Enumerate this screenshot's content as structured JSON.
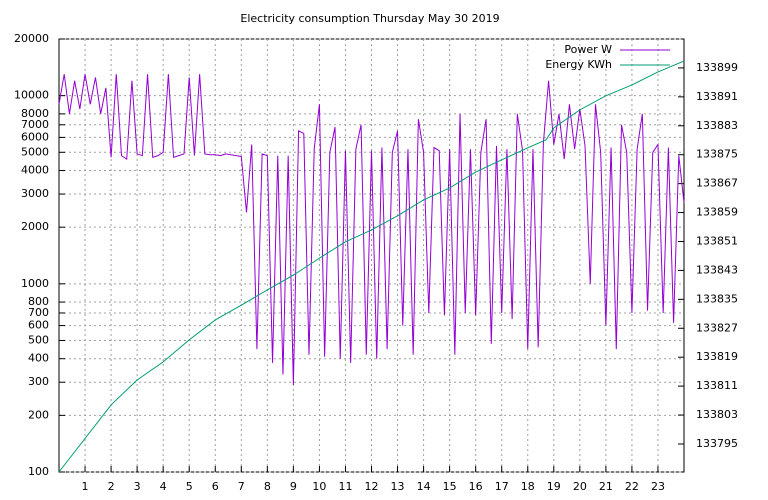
{
  "chart_data": {
    "type": "line",
    "title": "Electricity consumption Thursday May 30 2019",
    "xlim": [
      0,
      24
    ],
    "xticks": [
      1,
      2,
      3,
      4,
      5,
      6,
      7,
      8,
      9,
      10,
      11,
      12,
      13,
      14,
      15,
      16,
      17,
      18,
      19,
      20,
      21,
      22,
      23
    ],
    "ylim": [
      100,
      20000
    ],
    "ylog": true,
    "yticks": [
      100,
      200,
      300,
      400,
      500,
      600,
      700,
      800,
      1000,
      2000,
      3000,
      4000,
      5000,
      6000,
      7000,
      8000,
      10000,
      20000
    ],
    "y2lim": [
      133787.25,
      133907.0
    ],
    "y2ticks": [
      133795,
      133803,
      133811,
      133819,
      133827,
      133835,
      133843,
      133851,
      133859,
      133867,
      133875,
      133883,
      133891,
      133899
    ],
    "grid": true,
    "legend": "top-right",
    "series": [
      {
        "name": "Power W",
        "color": "#9400d3",
        "x": [
          0,
          0.2,
          0.4,
          0.6,
          0.8,
          1,
          1.2,
          1.4,
          1.6,
          1.8,
          2,
          2.2,
          2.4,
          2.6,
          2.8,
          3,
          3.2,
          3.4,
          3.6,
          3.8,
          4,
          4.2,
          4.4,
          4.6,
          4.8,
          5,
          5.2,
          5.4,
          5.6,
          5.8,
          6,
          6.2,
          6.4,
          6.6,
          6.8,
          7,
          7.2,
          7.4,
          7.6,
          7.8,
          8,
          8.2,
          8.4,
          8.6,
          8.8,
          9,
          9.2,
          9.4,
          9.6,
          9.8,
          10,
          10.2,
          10.4,
          10.6,
          10.8,
          11,
          11.2,
          11.4,
          11.6,
          11.8,
          12,
          12.2,
          12.4,
          12.6,
          12.8,
          13,
          13.2,
          13.4,
          13.6,
          13.8,
          14,
          14.2,
          14.4,
          14.6,
          14.8,
          15,
          15.2,
          15.4,
          15.6,
          15.8,
          16,
          16.2,
          16.4,
          16.6,
          16.8,
          17,
          17.2,
          17.4,
          17.6,
          17.8,
          18,
          18.2,
          18.4,
          18.6,
          18.8,
          19,
          19.2,
          19.4,
          19.6,
          19.8,
          20,
          20.2,
          20.4,
          20.6,
          20.8,
          21,
          21.2,
          21.4,
          21.6,
          21.8,
          22,
          22.2,
          22.4,
          22.6,
          22.8,
          23,
          23.2,
          23.4,
          23.6,
          23.8,
          24
        ],
        "values": [
          9000,
          13000,
          8000,
          12000,
          8500,
          13000,
          9000,
          12500,
          8000,
          11000,
          4700,
          13000,
          4800,
          4600,
          12000,
          4900,
          4800,
          13000,
          4700,
          4800,
          5000,
          13000,
          4700,
          4800,
          4900,
          12500,
          4800,
          13000,
          4900,
          4850,
          4850,
          4800,
          4900,
          4850,
          4800,
          4750,
          2400,
          5500,
          450,
          4900,
          4800,
          380,
          4800,
          330,
          4800,
          290,
          6500,
          6300,
          420,
          5200,
          9000,
          410,
          5000,
          6800,
          400,
          5100,
          380,
          5200,
          7000,
          420,
          5100,
          400,
          5300,
          450,
          5000,
          6500,
          600,
          5200,
          420,
          7500,
          5000,
          700,
          5300,
          5100,
          680,
          5200,
          420,
          8000,
          700,
          5200,
          680,
          5000,
          7500,
          480,
          5400,
          700,
          5200,
          650,
          8000,
          5100,
          450,
          5200,
          460,
          5600,
          12000,
          5500,
          8000,
          4600,
          9000,
          5200,
          8500,
          5400,
          1000,
          9000,
          5000,
          600,
          5300,
          450,
          7000,
          5000,
          700,
          5200,
          8000,
          720,
          5000,
          5500,
          700,
          5300,
          620,
          4800,
          2700
        ]
      },
      {
        "name": "Energy KWh",
        "color": "#009e73",
        "axis": "y2",
        "x": [
          0,
          2,
          3,
          4,
          5,
          6,
          7,
          8,
          9,
          10,
          11,
          12,
          13,
          14,
          15,
          16,
          17,
          18,
          18.7,
          19,
          20,
          21,
          22,
          23,
          24
        ],
        "values": [
          133787.25,
          133805.8,
          133812.7,
          133817.7,
          133823.8,
          133829.3,
          133833.4,
          133837.6,
          133841.7,
          133846.4,
          133850.9,
          133854.2,
          133858.1,
          133862.5,
          133865.8,
          133870.2,
          133873.6,
          133876.9,
          133879.1,
          133882.4,
          133887.4,
          133891.3,
          133894.3,
          133897.9,
          133900.9
        ]
      }
    ]
  }
}
